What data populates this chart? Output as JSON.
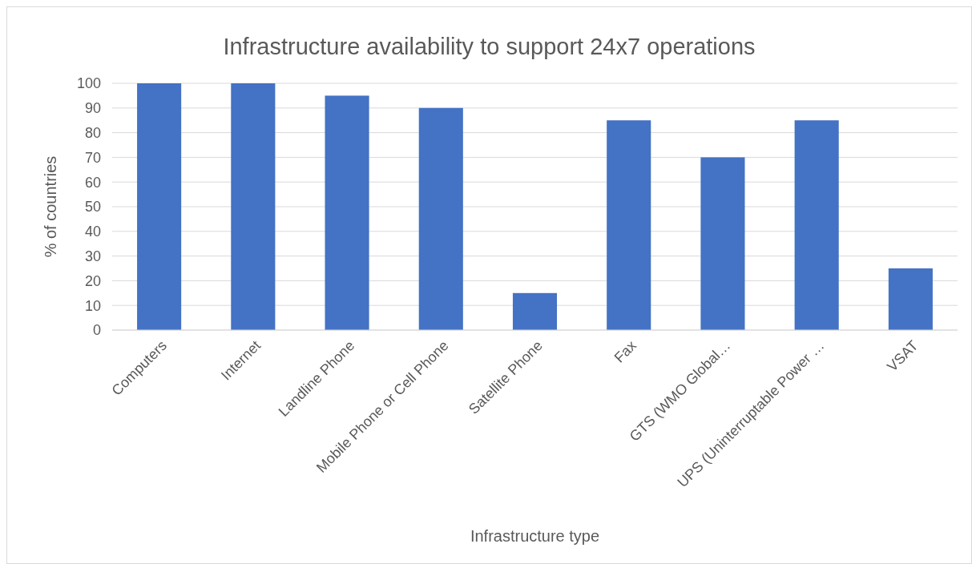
{
  "chart_data": {
    "type": "bar",
    "title": "Infrastructure availability to support 24x7 operations",
    "xlabel": "Infrastructure type",
    "ylabel": "% of countries",
    "categories": [
      "Computers",
      "Internet",
      "Landline Phone",
      "Mobile Phone or Cell Phone",
      "Satellite Phone",
      "Fax",
      "GTS (WMO Global…",
      "UPS (Uninterruptable Power …",
      "VSAT"
    ],
    "values": [
      100,
      100,
      95,
      90,
      15,
      85,
      70,
      85,
      25
    ],
    "color": "#4472c4",
    "ylim": [
      0,
      100
    ],
    "yticks": [
      0,
      10,
      20,
      30,
      40,
      50,
      60,
      70,
      80,
      90,
      100
    ],
    "grid": "y"
  }
}
